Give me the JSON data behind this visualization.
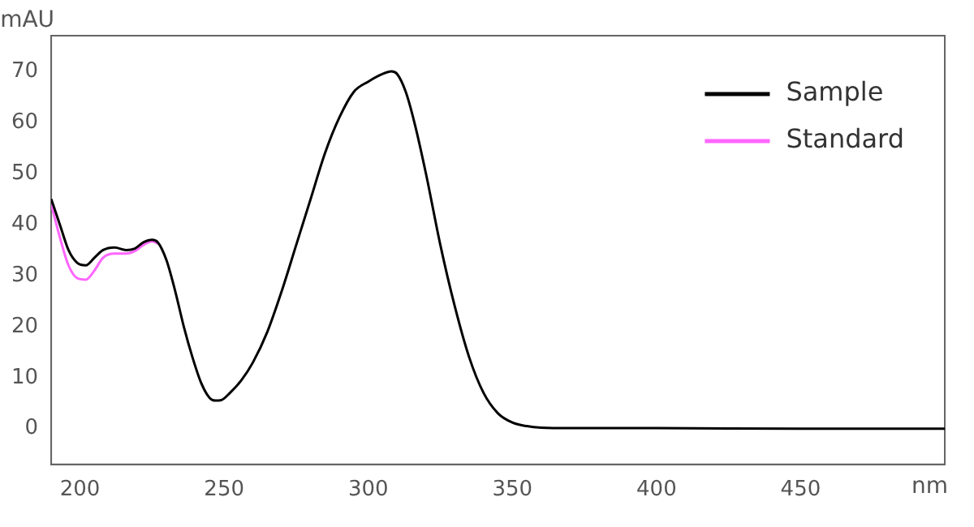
{
  "chart_data": {
    "type": "line",
    "xlabel": "nm",
    "ylabel": "mAU",
    "xlim": [
      190,
      500
    ],
    "xticks": [
      200,
      250,
      300,
      350,
      400,
      450
    ],
    "ylim": [
      -7,
      77
    ],
    "yticks": [
      0,
      10,
      20,
      30,
      40,
      50,
      60,
      70
    ],
    "grid": false,
    "legend": "top right",
    "marker": "none",
    "line_style": "solid",
    "x": [
      190,
      193,
      196,
      199,
      202,
      205,
      208,
      212,
      216,
      219,
      222,
      225,
      227,
      230,
      233,
      236,
      239,
      242,
      245,
      247,
      249,
      252,
      256,
      260,
      265,
      270,
      275,
      280,
      285,
      290,
      295,
      300,
      305,
      308,
      310,
      313,
      316,
      320,
      325,
      330,
      335,
      340,
      345,
      350,
      355,
      360,
      370,
      400,
      450,
      500
    ],
    "series": [
      {
        "name": "Sample",
        "color": "#000000",
        "values": [
          45,
          40,
          35,
          32.5,
          32,
          33.5,
          35,
          35.5,
          35,
          35.3,
          36.5,
          37,
          36.5,
          33,
          27,
          20,
          14,
          9,
          6,
          5.5,
          5.6,
          7,
          9.5,
          13,
          19,
          27,
          36,
          45,
          54,
          61,
          66,
          68,
          69.5,
          70,
          69.5,
          66,
          60,
          50,
          36,
          24,
          14,
          7,
          3,
          1.2,
          0.5,
          0.2,
          0.1,
          0.1,
          0,
          0
        ]
      },
      {
        "name": "Standard",
        "color": "#ff66ff",
        "values": [
          44,
          37.5,
          32,
          29.5,
          29.2,
          31,
          33.5,
          34.3,
          34.3,
          34.8,
          36,
          36.7,
          36.3,
          null,
          null,
          null,
          null,
          null,
          null,
          null,
          null,
          null,
          null,
          null,
          null,
          null,
          null,
          null,
          null,
          null,
          null,
          null,
          null,
          null,
          null,
          null,
          null,
          null,
          null,
          null,
          null,
          null,
          null,
          null,
          null,
          null,
          null,
          null,
          null,
          null
        ]
      }
    ]
  }
}
